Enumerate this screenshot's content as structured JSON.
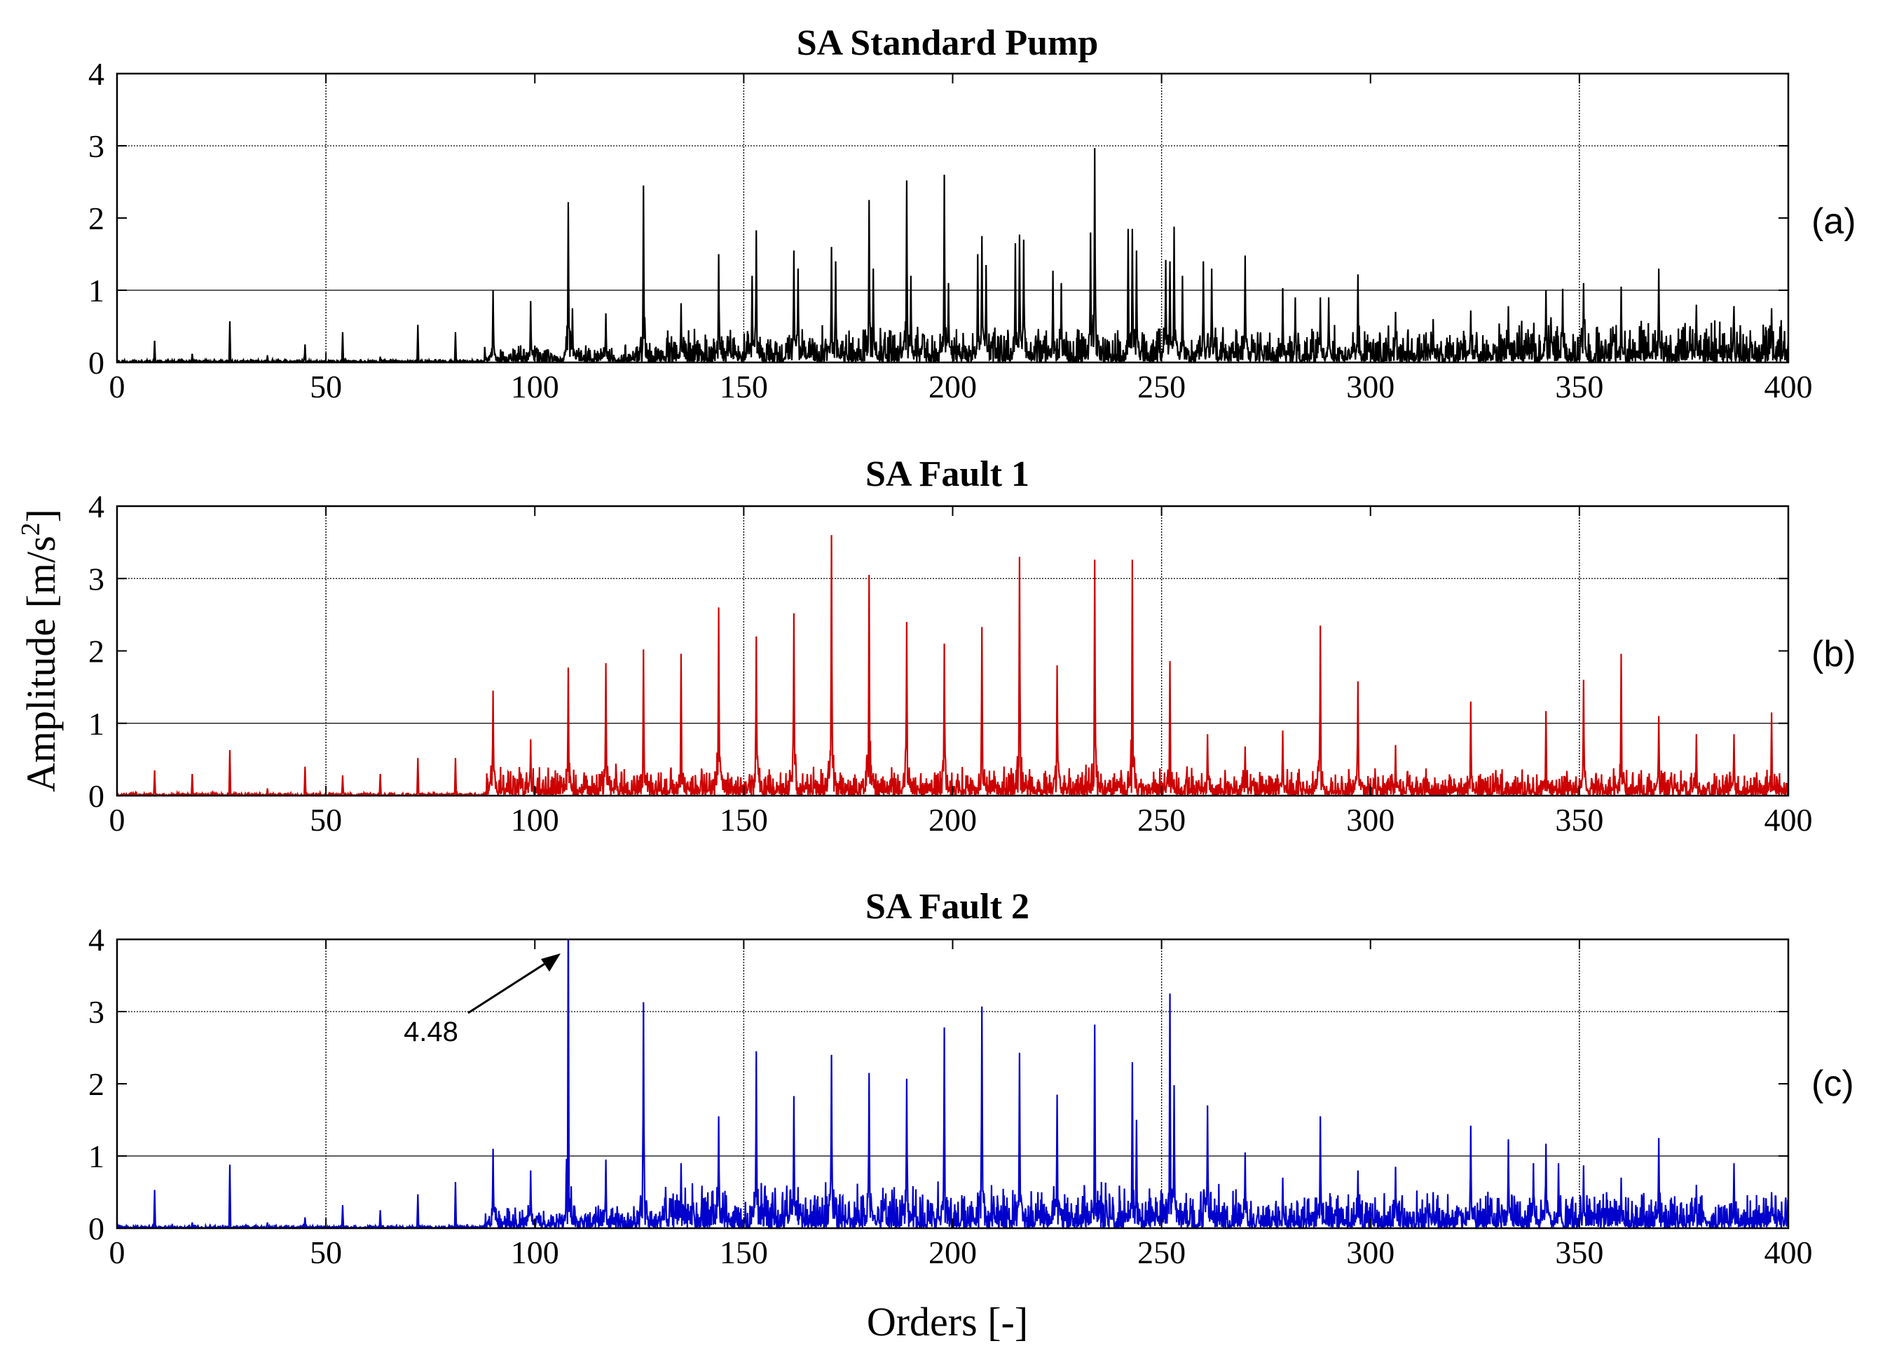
{
  "figure": {
    "ylabel": "Amplitude [m/s",
    "ylabel_sup": "2",
    "ylabel_end": "]",
    "xlabel": "Orders [-]"
  },
  "chart_data": [
    {
      "type": "line",
      "panel": "(a)",
      "title": "SA Standard Pump",
      "color": "#000000",
      "xlim": [
        0,
        400
      ],
      "ylim": [
        0,
        4
      ],
      "xticks": [
        "0",
        "50",
        "100",
        "150",
        "200",
        "250",
        "300",
        "350",
        "400"
      ],
      "yticks": [
        "0",
        "1",
        "2",
        "3",
        "4"
      ],
      "peaks": [
        [
          9,
          0.3
        ],
        [
          18,
          0.12
        ],
        [
          27,
          0.57
        ],
        [
          36,
          0.1
        ],
        [
          45,
          0.25
        ],
        [
          54,
          0.42
        ],
        [
          63,
          0.08
        ],
        [
          72,
          0.52
        ],
        [
          81,
          0.42
        ],
        [
          90,
          1.0
        ],
        [
          99,
          0.85
        ],
        [
          108,
          2.22
        ],
        [
          109,
          0.75
        ],
        [
          117,
          0.68
        ],
        [
          126,
          2.45
        ],
        [
          135,
          0.82
        ],
        [
          144,
          1.5
        ],
        [
          152,
          1.2
        ],
        [
          153,
          1.83
        ],
        [
          162,
          1.55
        ],
        [
          163,
          1.3
        ],
        [
          171,
          1.6
        ],
        [
          172,
          1.4
        ],
        [
          180,
          2.25
        ],
        [
          181,
          1.3
        ],
        [
          189,
          2.52
        ],
        [
          190,
          1.2
        ],
        [
          198,
          2.6
        ],
        [
          199,
          1.1
        ],
        [
          206,
          1.5
        ],
        [
          207,
          1.75
        ],
        [
          208,
          1.35
        ],
        [
          215,
          1.65
        ],
        [
          216,
          1.77
        ],
        [
          217,
          1.7
        ],
        [
          224,
          1.27
        ],
        [
          226,
          1.1
        ],
        [
          233,
          1.8
        ],
        [
          234,
          2.97
        ],
        [
          242,
          1.85
        ],
        [
          243,
          1.85
        ],
        [
          244,
          1.55
        ],
        [
          251,
          1.42
        ],
        [
          252,
          1.4
        ],
        [
          253,
          1.88
        ],
        [
          255,
          1.2
        ],
        [
          260,
          1.4
        ],
        [
          262,
          1.3
        ],
        [
          270,
          1.48
        ],
        [
          279,
          1.03
        ],
        [
          282,
          0.9
        ],
        [
          288,
          0.9
        ],
        [
          290,
          0.9
        ],
        [
          297,
          1.22
        ],
        [
          306,
          0.7
        ],
        [
          315,
          0.6
        ],
        [
          324,
          0.72
        ],
        [
          333,
          0.78
        ],
        [
          342,
          1.0
        ],
        [
          346,
          1.02
        ],
        [
          351,
          1.1
        ],
        [
          360,
          1.05
        ],
        [
          369,
          1.3
        ],
        [
          378,
          0.8
        ],
        [
          387,
          0.78
        ],
        [
          396,
          0.75
        ]
      ]
    },
    {
      "type": "line",
      "panel": "(b)",
      "title": "SA Fault 1",
      "color": "#cc0000",
      "xlim": [
        0,
        400
      ],
      "ylim": [
        0,
        4
      ],
      "xticks": [
        "0",
        "50",
        "100",
        "150",
        "200",
        "250",
        "300",
        "350",
        "400"
      ],
      "yticks": [
        "0",
        "1",
        "2",
        "3",
        "4"
      ],
      "peaks": [
        [
          9,
          0.35
        ],
        [
          18,
          0.3
        ],
        [
          27,
          0.63
        ],
        [
          36,
          0.1
        ],
        [
          45,
          0.4
        ],
        [
          54,
          0.28
        ],
        [
          63,
          0.3
        ],
        [
          72,
          0.52
        ],
        [
          81,
          0.52
        ],
        [
          90,
          1.45
        ],
        [
          99,
          0.78
        ],
        [
          108,
          1.77
        ],
        [
          117,
          1.83
        ],
        [
          126,
          2.02
        ],
        [
          135,
          1.96
        ],
        [
          144,
          2.6
        ],
        [
          153,
          2.2
        ],
        [
          162,
          2.52
        ],
        [
          171,
          3.6
        ],
        [
          180,
          3.05
        ],
        [
          189,
          2.4
        ],
        [
          198,
          2.1
        ],
        [
          207,
          2.33
        ],
        [
          216,
          3.3
        ],
        [
          225,
          1.8
        ],
        [
          234,
          3.26
        ],
        [
          243,
          3.26
        ],
        [
          252,
          1.86
        ],
        [
          261,
          0.85
        ],
        [
          270,
          0.68
        ],
        [
          279,
          0.9
        ],
        [
          288,
          2.35
        ],
        [
          297,
          1.58
        ],
        [
          306,
          0.7
        ],
        [
          324,
          1.3
        ],
        [
          342,
          1.17
        ],
        [
          351,
          1.6
        ],
        [
          360,
          1.96
        ],
        [
          369,
          1.1
        ],
        [
          378,
          0.85
        ],
        [
          387,
          0.85
        ],
        [
          396,
          1.15
        ]
      ]
    },
    {
      "type": "line",
      "panel": "(c)",
      "title": "SA Fault 2",
      "color": "#0000cc",
      "xlim": [
        0,
        400
      ],
      "ylim": [
        0,
        4
      ],
      "xticks": [
        "0",
        "50",
        "100",
        "150",
        "200",
        "250",
        "300",
        "350",
        "400"
      ],
      "yticks": [
        "0",
        "1",
        "2",
        "3",
        "4"
      ],
      "annotation": {
        "text": "4.48",
        "x": 108,
        "y": 4.48
      },
      "peaks": [
        [
          9,
          0.53
        ],
        [
          18,
          0.08
        ],
        [
          27,
          0.88
        ],
        [
          36,
          0.08
        ],
        [
          45,
          0.15
        ],
        [
          54,
          0.32
        ],
        [
          63,
          0.25
        ],
        [
          72,
          0.47
        ],
        [
          81,
          0.64
        ],
        [
          90,
          1.1
        ],
        [
          99,
          0.8
        ],
        [
          108,
          4.48
        ],
        [
          117,
          0.95
        ],
        [
          126,
          3.13
        ],
        [
          135,
          0.9
        ],
        [
          144,
          1.55
        ],
        [
          153,
          2.45
        ],
        [
          162,
          1.83
        ],
        [
          171,
          2.4
        ],
        [
          180,
          2.15
        ],
        [
          189,
          2.07
        ],
        [
          198,
          2.78
        ],
        [
          207,
          3.07
        ],
        [
          216,
          2.43
        ],
        [
          225,
          1.85
        ],
        [
          234,
          2.82
        ],
        [
          243,
          2.3
        ],
        [
          244,
          1.5
        ],
        [
          252,
          3.25
        ],
        [
          253,
          1.98
        ],
        [
          261,
          1.7
        ],
        [
          270,
          1.05
        ],
        [
          279,
          0.7
        ],
        [
          288,
          1.55
        ],
        [
          297,
          0.8
        ],
        [
          306,
          0.85
        ],
        [
          315,
          0.5
        ],
        [
          324,
          1.42
        ],
        [
          333,
          1.23
        ],
        [
          339,
          0.9
        ],
        [
          342,
          1.17
        ],
        [
          345,
          0.9
        ],
        [
          351,
          0.87
        ],
        [
          360,
          0.7
        ],
        [
          369,
          1.25
        ],
        [
          378,
          0.6
        ],
        [
          387,
          0.9
        ],
        [
          396,
          0.5
        ]
      ]
    }
  ]
}
